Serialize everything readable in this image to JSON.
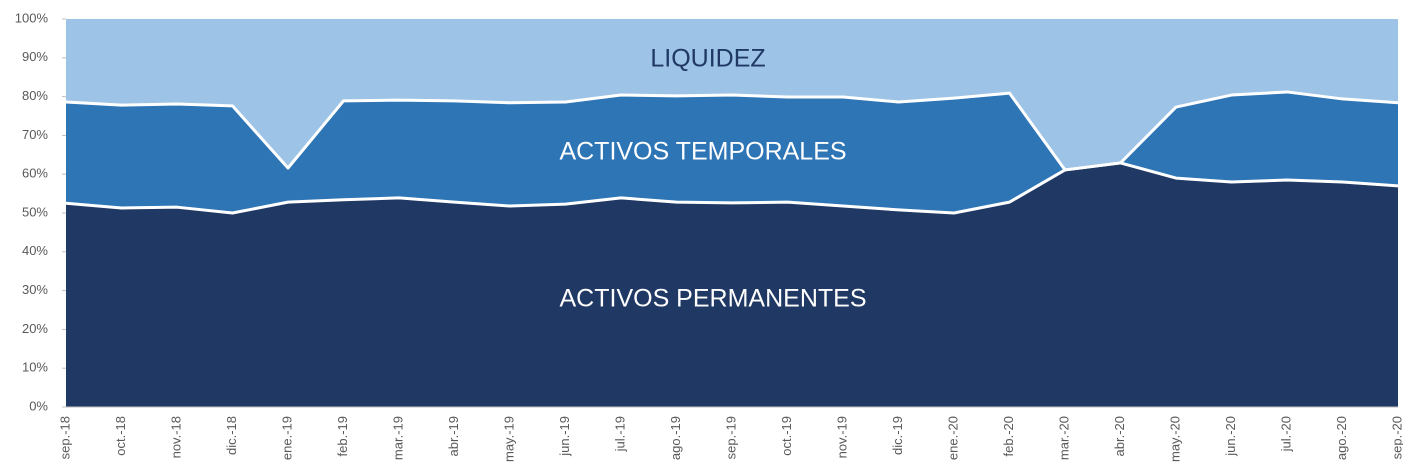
{
  "chart_data": {
    "type": "stacked_area",
    "categories": [
      "sep.-18",
      "oct.-18",
      "nov.-18",
      "dic.-18",
      "ene.-19",
      "feb.-19",
      "mar.-19",
      "abr.-19",
      "may.-19",
      "jun.-19",
      "jul.-19",
      "ago.-19",
      "sep.-19",
      "oct.-19",
      "nov.-19",
      "dic.-19",
      "ene.-20",
      "feb.-20",
      "mar.-20",
      "abr.-20",
      "may.-20",
      "jun.-20",
      "jul.-20",
      "ago.-20",
      "sep.-20"
    ],
    "series": [
      {
        "name": "ACTIVOS PERMANENTES",
        "color": "#203864",
        "label_color": "#ffffff",
        "values": [
          52.5,
          51.3,
          51.5,
          50,
          52.8,
          53.4,
          53.9,
          52.8,
          51.8,
          52.3,
          53.9,
          52.8,
          52.6,
          52.8,
          51.8,
          50.8,
          50,
          52.8,
          61.1,
          62.9,
          59,
          58,
          58.5,
          58,
          57
        ]
      },
      {
        "name": "ACTIVOS TEMPORALES",
        "color": "#2e75b6",
        "label_color": "#ffffff",
        "values": [
          26.1,
          26.5,
          26.6,
          27.6,
          8.8,
          25.5,
          25.2,
          26.1,
          26.6,
          26.3,
          26.5,
          27.4,
          27.8,
          27.1,
          28.1,
          27.8,
          29.6,
          28.1,
          0,
          0,
          18.3,
          22.4,
          22.7,
          21.4,
          21.4
        ]
      },
      {
        "name": "LIQUIDEZ",
        "color": "#9dc3e6",
        "label_color": "#1f3864",
        "values": [
          21.4,
          22.2,
          21.9,
          22.4,
          38.4,
          21.1,
          20.9,
          21.1,
          21.6,
          21.4,
          19.6,
          19.8,
          19.6,
          20.1,
          20.1,
          21.4,
          20.4,
          19.1,
          38.9,
          37.1,
          22.7,
          19.6,
          18.8,
          20.6,
          21.6
        ]
      }
    ],
    "ylim": [
      0,
      100
    ],
    "yticks": [
      {
        "value": 0,
        "label": "0%"
      },
      {
        "value": 10,
        "label": "10%"
      },
      {
        "value": 20,
        "label": "20%"
      },
      {
        "value": 30,
        "label": "30%"
      },
      {
        "value": 40,
        "label": "40%"
      },
      {
        "value": 50,
        "label": "50%"
      },
      {
        "value": 60,
        "label": "60%"
      },
      {
        "value": 70,
        "label": "70%"
      },
      {
        "value": 80,
        "label": "80%"
      },
      {
        "value": 90,
        "label": "90%"
      },
      {
        "value": 100,
        "label": "100%"
      }
    ]
  }
}
